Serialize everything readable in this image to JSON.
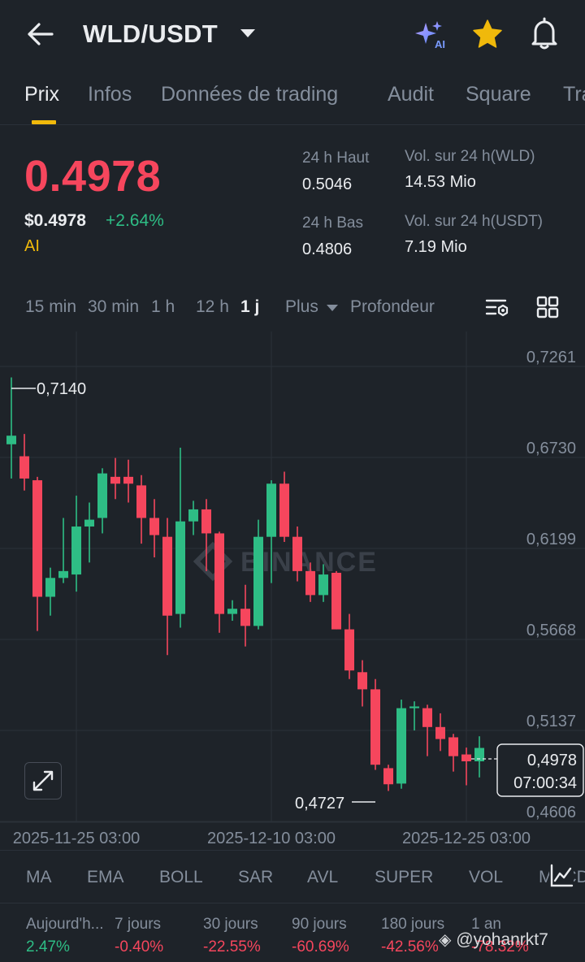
{
  "header": {
    "pair": "WLD/USDT",
    "ai_badge": "AI"
  },
  "tabs": [
    {
      "label": "Prix",
      "active": true
    },
    {
      "label": "Infos"
    },
    {
      "label": "Données de trading"
    },
    {
      "label": "Audit"
    },
    {
      "label": "Square"
    },
    {
      "label": "Trading bots"
    }
  ],
  "price": {
    "last": "0.4978",
    "usd": "$0.4978",
    "change": "+2.64%",
    "tag": "AI",
    "high_label": "24 h Haut",
    "high_value": "0.5046",
    "low_label": "24 h Bas",
    "low_value": "0.4806",
    "vol_base_label": "Vol. sur 24 h(WLD)",
    "vol_base_value": "14.53 Mio",
    "vol_quote_label": "Vol. sur 24 h(USDT)",
    "vol_quote_value": "7.19 Mio"
  },
  "intervals": {
    "items": [
      "15 min",
      "30 min",
      "1 h",
      "12 h",
      "1 j"
    ],
    "active": "1 j",
    "more": "Plus",
    "depth": "Profondeur"
  },
  "chart_data": {
    "type": "candlestick",
    "y_ticks": [
      "0,7261",
      "0,6730",
      "0,6199",
      "0,5668",
      "0,5137",
      "0,4606"
    ],
    "ylim": [
      0.4606,
      0.7261
    ],
    "x_ticks": [
      "2025-11-25 03:00",
      "2025-12-10 03:00",
      "2025-12-25 03:00"
    ],
    "watermark": "BINANCE",
    "high_marker": "0,7140",
    "low_marker": "0,4727",
    "current_price": "0,4978",
    "countdown": "07:00:34",
    "candles": [
      {
        "o": 0.675,
        "h": 0.714,
        "l": 0.655,
        "c": 0.68
      },
      {
        "o": 0.668,
        "h": 0.681,
        "l": 0.648,
        "c": 0.655
      },
      {
        "o": 0.654,
        "h": 0.656,
        "l": 0.566,
        "c": 0.586
      },
      {
        "o": 0.586,
        "h": 0.603,
        "l": 0.575,
        "c": 0.597
      },
      {
        "o": 0.597,
        "h": 0.632,
        "l": 0.594,
        "c": 0.601
      },
      {
        "o": 0.599,
        "h": 0.645,
        "l": 0.589,
        "c": 0.627
      },
      {
        "o": 0.627,
        "h": 0.641,
        "l": 0.606,
        "c": 0.631
      },
      {
        "o": 0.632,
        "h": 0.661,
        "l": 0.623,
        "c": 0.658
      },
      {
        "o": 0.656,
        "h": 0.667,
        "l": 0.643,
        "c": 0.652
      },
      {
        "o": 0.656,
        "h": 0.666,
        "l": 0.641,
        "c": 0.652
      },
      {
        "o": 0.651,
        "h": 0.657,
        "l": 0.617,
        "c": 0.632
      },
      {
        "o": 0.632,
        "h": 0.643,
        "l": 0.609,
        "c": 0.622
      },
      {
        "o": 0.621,
        "h": 0.632,
        "l": 0.552,
        "c": 0.575
      },
      {
        "o": 0.576,
        "h": 0.673,
        "l": 0.568,
        "c": 0.63
      },
      {
        "o": 0.63,
        "h": 0.642,
        "l": 0.622,
        "c": 0.637
      },
      {
        "o": 0.637,
        "h": 0.643,
        "l": 0.601,
        "c": 0.623
      },
      {
        "o": 0.623,
        "h": 0.624,
        "l": 0.565,
        "c": 0.576
      },
      {
        "o": 0.576,
        "h": 0.584,
        "l": 0.572,
        "c": 0.579
      },
      {
        "o": 0.579,
        "h": 0.593,
        "l": 0.557,
        "c": 0.569
      },
      {
        "o": 0.569,
        "h": 0.631,
        "l": 0.567,
        "c": 0.621
      },
      {
        "o": 0.621,
        "h": 0.654,
        "l": 0.594,
        "c": 0.652
      },
      {
        "o": 0.652,
        "h": 0.659,
        "l": 0.618,
        "c": 0.621
      },
      {
        "o": 0.621,
        "h": 0.627,
        "l": 0.595,
        "c": 0.601
      },
      {
        "o": 0.601,
        "h": 0.606,
        "l": 0.583,
        "c": 0.587
      },
      {
        "o": 0.587,
        "h": 0.605,
        "l": 0.583,
        "c": 0.599
      },
      {
        "o": 0.6,
        "h": 0.601,
        "l": 0.567,
        "c": 0.567
      },
      {
        "o": 0.567,
        "h": 0.576,
        "l": 0.538,
        "c": 0.543
      },
      {
        "o": 0.542,
        "h": 0.549,
        "l": 0.522,
        "c": 0.532
      },
      {
        "o": 0.532,
        "h": 0.538,
        "l": 0.485,
        "c": 0.488
      },
      {
        "o": 0.486,
        "h": 0.488,
        "l": 0.4727,
        "c": 0.4766
      },
      {
        "o": 0.477,
        "h": 0.526,
        "l": 0.474,
        "c": 0.521
      },
      {
        "o": 0.521,
        "h": 0.525,
        "l": 0.508,
        "c": 0.522
      },
      {
        "o": 0.521,
        "h": 0.523,
        "l": 0.493,
        "c": 0.51
      },
      {
        "o": 0.51,
        "h": 0.518,
        "l": 0.496,
        "c": 0.503
      },
      {
        "o": 0.504,
        "h": 0.506,
        "l": 0.484,
        "c": 0.493
      },
      {
        "o": 0.494,
        "h": 0.498,
        "l": 0.476,
        "c": 0.49
      },
      {
        "o": 0.49,
        "h": 0.5046,
        "l": 0.4806,
        "c": 0.4978
      }
    ]
  },
  "indicators": [
    "MA",
    "EMA",
    "BOLL",
    "SAR",
    "AVL",
    "SUPER",
    "VOL",
    "MACD"
  ],
  "performance": [
    {
      "label": "Aujourd'h...",
      "value": "2.47%",
      "dir": "pos"
    },
    {
      "label": "7 jours",
      "value": "-0.40%",
      "dir": "neg"
    },
    {
      "label": "30 jours",
      "value": "-22.55%",
      "dir": "neg"
    },
    {
      "label": "90 jours",
      "value": "-60.69%",
      "dir": "neg"
    },
    {
      "label": "180 jours",
      "value": "-42.56%",
      "dir": "neg"
    },
    {
      "label": "1 an",
      "value": "-78.32%",
      "dir": "neg"
    }
  ],
  "watermark_user": "@yohanrkt7",
  "colors": {
    "up": "#2ebd85",
    "down": "#f6465d",
    "accent": "#f0b90b",
    "bg": "#1e2329"
  }
}
